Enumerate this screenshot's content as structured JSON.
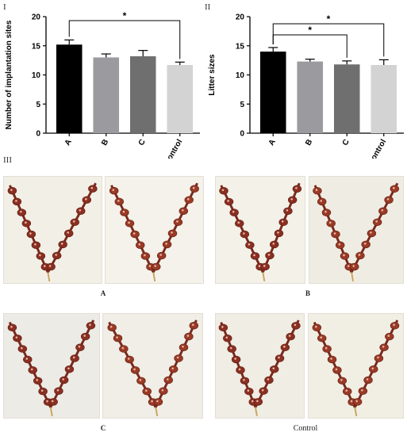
{
  "panels": {
    "panel_i": "I",
    "panel_ii": "II",
    "panel_iii": "III"
  },
  "chart_data": [
    {
      "type": "bar",
      "categories": [
        "A",
        "B",
        "C",
        "Control"
      ],
      "values": [
        15.2,
        13.0,
        13.2,
        11.7
      ],
      "errors": [
        0.8,
        0.6,
        1.0,
        0.5
      ],
      "colors": [
        "#000000",
        "#9a9a9f",
        "#6f6f6f",
        "#d3d3d3"
      ],
      "ylabel": "Number of implantation sites",
      "yticks": [
        0,
        5,
        10,
        15,
        20
      ],
      "ylim": [
        0,
        20
      ],
      "significance": [
        {
          "from": "A",
          "to": "Control",
          "label": "*"
        }
      ]
    },
    {
      "type": "bar",
      "categories": [
        "A",
        "B",
        "C",
        "Control"
      ],
      "values": [
        14.0,
        12.3,
        11.8,
        11.7
      ],
      "errors": [
        0.7,
        0.4,
        0.6,
        0.9
      ],
      "colors": [
        "#000000",
        "#9a9a9f",
        "#6f6f6f",
        "#d3d3d3"
      ],
      "ylabel": "Litter sizes",
      "yticks": [
        0,
        5,
        10,
        15,
        20
      ],
      "ylim": [
        0,
        20
      ],
      "significance": [
        {
          "from": "A",
          "to": "C",
          "label": "*"
        },
        {
          "from": "A",
          "to": "Control",
          "label": "*"
        }
      ]
    }
  ],
  "photos": {
    "captions": [
      "A",
      "B",
      "C",
      "Control"
    ]
  }
}
